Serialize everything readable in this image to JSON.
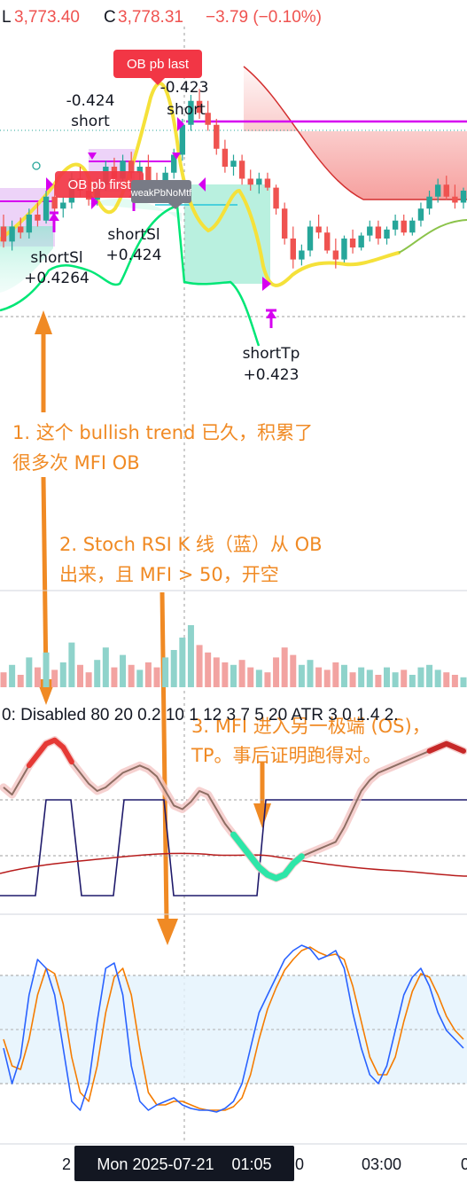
{
  "header": {
    "low_prefix": "L",
    "low_value": "3,773.40",
    "close_prefix": "C",
    "close_value": "3,778.31",
    "change": "−3.79 (−0.10%)"
  },
  "colors": {
    "up": "#26a69a",
    "down": "#ef5350",
    "accent": "#f08a24",
    "magenta": "#d600f0",
    "yellow": "#f5e13a",
    "mfi": "#1f1a6b",
    "stoch_k": "#2962ff",
    "stoch_d": "#f57c00"
  },
  "price_labels": {
    "ob_pb_last": "OB pb last",
    "ob_pb_first": "OB pb first",
    "weak": "weakPbNoMtf",
    "short_left": "-0.424",
    "short_left_word": "short",
    "short_right": "-0.423",
    "short_right_word": "short",
    "shortsl_a": "shortSl",
    "shortsl_a_val": "+0.4264",
    "shortsl_b": "shortSl",
    "shortsl_b_val": "+0.424",
    "shorttp": "shortTp",
    "shorttp_val": "+0.423"
  },
  "annotations": {
    "note1_line1": "1. 这个 bullish trend 已久，积累了",
    "note1_line2": "很多次 MFI OB",
    "note2_line1": "2. Stoch RSI K 线（蓝）从 OB",
    "note2_line2": "出来，且 MFI > 50，开空",
    "note3_line1": "3. MFI 进入另一极端 (OS)，",
    "note3_line2": "TP。事后证明跑得对。"
  },
  "indicator_legend": "0: Disabled 80 20 0.2 10 1 12 3 7 5 20 ATR 3 0 1.4 2.",
  "time_axis": {
    "left_tick": "2",
    "crosshair_label": "Mon 2025-07-21    01:05",
    "tick_mid": "0",
    "tick_right": "03:00",
    "tick_edge": "0"
  },
  "chart_data": {
    "type": "candlestick",
    "title": "",
    "candles": [
      {
        "o": 3779.0,
        "h": 3781.0,
        "l": 3775.5,
        "c": 3776.5
      },
      {
        "o": 3776.5,
        "h": 3780.0,
        "l": 3775.0,
        "c": 3779.0
      },
      {
        "o": 3779.0,
        "h": 3780.5,
        "l": 3777.0,
        "c": 3778.0
      },
      {
        "o": 3778.0,
        "h": 3782.0,
        "l": 3777.0,
        "c": 3781.0
      },
      {
        "o": 3781.0,
        "h": 3783.0,
        "l": 3779.0,
        "c": 3780.0
      },
      {
        "o": 3780.0,
        "h": 3785.0,
        "l": 3779.5,
        "c": 3784.0
      },
      {
        "o": 3784.0,
        "h": 3786.0,
        "l": 3781.0,
        "c": 3782.0
      },
      {
        "o": 3782.0,
        "h": 3784.0,
        "l": 3780.5,
        "c": 3783.0
      },
      {
        "o": 3783.0,
        "h": 3788.0,
        "l": 3782.0,
        "c": 3787.0
      },
      {
        "o": 3787.0,
        "h": 3789.0,
        "l": 3784.0,
        "c": 3785.0
      },
      {
        "o": 3785.0,
        "h": 3786.5,
        "l": 3782.5,
        "c": 3783.5
      },
      {
        "o": 3783.5,
        "h": 3787.0,
        "l": 3782.5,
        "c": 3786.0
      },
      {
        "o": 3786.0,
        "h": 3790.0,
        "l": 3785.0,
        "c": 3789.0
      },
      {
        "o": 3789.0,
        "h": 3790.5,
        "l": 3786.0,
        "c": 3787.0
      },
      {
        "o": 3787.0,
        "h": 3791.0,
        "l": 3786.0,
        "c": 3790.0
      },
      {
        "o": 3790.0,
        "h": 3791.5,
        "l": 3787.0,
        "c": 3788.0
      },
      {
        "o": 3788.0,
        "h": 3790.0,
        "l": 3786.5,
        "c": 3789.0
      },
      {
        "o": 3789.0,
        "h": 3791.0,
        "l": 3785.5,
        "c": 3786.5
      },
      {
        "o": 3786.5,
        "h": 3788.0,
        "l": 3784.0,
        "c": 3785.0
      },
      {
        "o": 3785.0,
        "h": 3789.0,
        "l": 3784.0,
        "c": 3788.0
      },
      {
        "o": 3788.0,
        "h": 3792.0,
        "l": 3787.0,
        "c": 3791.0
      },
      {
        "o": 3791.0,
        "h": 3797.0,
        "l": 3790.0,
        "c": 3796.0
      },
      {
        "o": 3796.0,
        "h": 3801.0,
        "l": 3795.0,
        "c": 3800.0
      },
      {
        "o": 3800.0,
        "h": 3802.0,
        "l": 3797.0,
        "c": 3798.0
      },
      {
        "o": 3798.0,
        "h": 3800.0,
        "l": 3795.0,
        "c": 3796.0
      },
      {
        "o": 3796.0,
        "h": 3797.0,
        "l": 3791.0,
        "c": 3792.0
      },
      {
        "o": 3792.0,
        "h": 3793.5,
        "l": 3788.0,
        "c": 3789.0
      },
      {
        "o": 3789.0,
        "h": 3791.0,
        "l": 3787.5,
        "c": 3790.0
      },
      {
        "o": 3790.0,
        "h": 3791.0,
        "l": 3786.0,
        "c": 3787.0
      },
      {
        "o": 3787.0,
        "h": 3788.5,
        "l": 3785.0,
        "c": 3786.0
      },
      {
        "o": 3786.0,
        "h": 3788.0,
        "l": 3784.5,
        "c": 3787.0
      },
      {
        "o": 3787.0,
        "h": 3788.0,
        "l": 3785.0,
        "c": 3785.5
      },
      {
        "o": 3785.5,
        "h": 3786.0,
        "l": 3781.0,
        "c": 3782.0
      },
      {
        "o": 3782.0,
        "h": 3783.0,
        "l": 3776.0,
        "c": 3777.0
      },
      {
        "o": 3777.0,
        "h": 3779.0,
        "l": 3772.0,
        "c": 3773.5
      },
      {
        "o": 3773.5,
        "h": 3776.0,
        "l": 3772.5,
        "c": 3775.0
      },
      {
        "o": 3775.0,
        "h": 3780.0,
        "l": 3774.0,
        "c": 3779.0
      },
      {
        "o": 3779.0,
        "h": 3781.0,
        "l": 3777.0,
        "c": 3778.0
      },
      {
        "o": 3778.0,
        "h": 3779.0,
        "l": 3774.5,
        "c": 3775.0
      },
      {
        "o": 3775.0,
        "h": 3777.0,
        "l": 3772.0,
        "c": 3773.5
      },
      {
        "o": 3773.5,
        "h": 3777.5,
        "l": 3773.0,
        "c": 3777.0
      },
      {
        "o": 3777.0,
        "h": 3778.5,
        "l": 3774.5,
        "c": 3775.5
      },
      {
        "o": 3775.5,
        "h": 3778.0,
        "l": 3775.0,
        "c": 3777.5
      },
      {
        "o": 3777.5,
        "h": 3780.0,
        "l": 3776.5,
        "c": 3779.0
      },
      {
        "o": 3779.0,
        "h": 3780.0,
        "l": 3776.0,
        "c": 3777.0
      },
      {
        "o": 3777.0,
        "h": 3779.0,
        "l": 3776.0,
        "c": 3778.5
      },
      {
        "o": 3778.5,
        "h": 3781.0,
        "l": 3777.5,
        "c": 3780.0
      },
      {
        "o": 3780.0,
        "h": 3781.0,
        "l": 3777.5,
        "c": 3778.0
      },
      {
        "o": 3778.0,
        "h": 3780.5,
        "l": 3777.5,
        "c": 3780.0
      },
      {
        "o": 3780.0,
        "h": 3783.0,
        "l": 3779.0,
        "c": 3782.0
      },
      {
        "o": 3782.0,
        "h": 3785.0,
        "l": 3781.0,
        "c": 3784.0
      },
      {
        "o": 3784.0,
        "h": 3787.0,
        "l": 3783.0,
        "c": 3786.0
      },
      {
        "o": 3786.0,
        "h": 3787.5,
        "l": 3783.5,
        "c": 3784.0
      },
      {
        "o": 3784.0,
        "h": 3786.0,
        "l": 3782.0,
        "c": 3783.0
      },
      {
        "o": 3783.0,
        "h": 3785.5,
        "l": 3782.0,
        "c": 3785.0
      }
    ],
    "volume": [
      6,
      9,
      5,
      12,
      8,
      14,
      7,
      10,
      18,
      9,
      6,
      11,
      16,
      8,
      13,
      9,
      7,
      10,
      8,
      12,
      15,
      20,
      25,
      17,
      14,
      12,
      10,
      9,
      11,
      8,
      7,
      6,
      12,
      16,
      13,
      9,
      11,
      8,
      7,
      10,
      9,
      6,
      8,
      7,
      5,
      8,
      6,
      7,
      5,
      8,
      9,
      7,
      6,
      5,
      4
    ],
    "mfi_oscillator": [
      62,
      58,
      66,
      74,
      80,
      86,
      88,
      84,
      76,
      70,
      64,
      60,
      62,
      66,
      70,
      72,
      74,
      72,
      68,
      60,
      52,
      50,
      54,
      60,
      58,
      50,
      42,
      36,
      30,
      24,
      18,
      14,
      12,
      14,
      20,
      24,
      26,
      28,
      30,
      32,
      40,
      50,
      60,
      66,
      70,
      72,
      74,
      76,
      78,
      80,
      82,
      84,
      86,
      84,
      82
    ],
    "stoch_k": [
      40,
      20,
      35,
      70,
      90,
      85,
      70,
      40,
      10,
      5,
      20,
      55,
      85,
      88,
      70,
      30,
      10,
      5,
      8,
      10,
      12,
      8,
      6,
      5,
      5,
      4,
      6,
      10,
      20,
      40,
      60,
      70,
      80,
      90,
      95,
      98,
      96,
      90,
      92,
      95,
      85,
      60,
      40,
      25,
      20,
      30,
      50,
      70,
      80,
      85,
      75,
      60,
      50,
      45,
      40
    ],
    "stoch_d": [
      45,
      30,
      28,
      45,
      70,
      85,
      82,
      65,
      35,
      15,
      10,
      30,
      60,
      80,
      85,
      70,
      40,
      15,
      8,
      8,
      10,
      10,
      8,
      6,
      5,
      5,
      5,
      7,
      12,
      25,
      45,
      62,
      74,
      84,
      90,
      95,
      97,
      94,
      92,
      93,
      90,
      75,
      55,
      35,
      25,
      25,
      35,
      55,
      72,
      82,
      80,
      70,
      58,
      50,
      45
    ],
    "mfi_upper": 80,
    "mfi_lower": 20
  }
}
